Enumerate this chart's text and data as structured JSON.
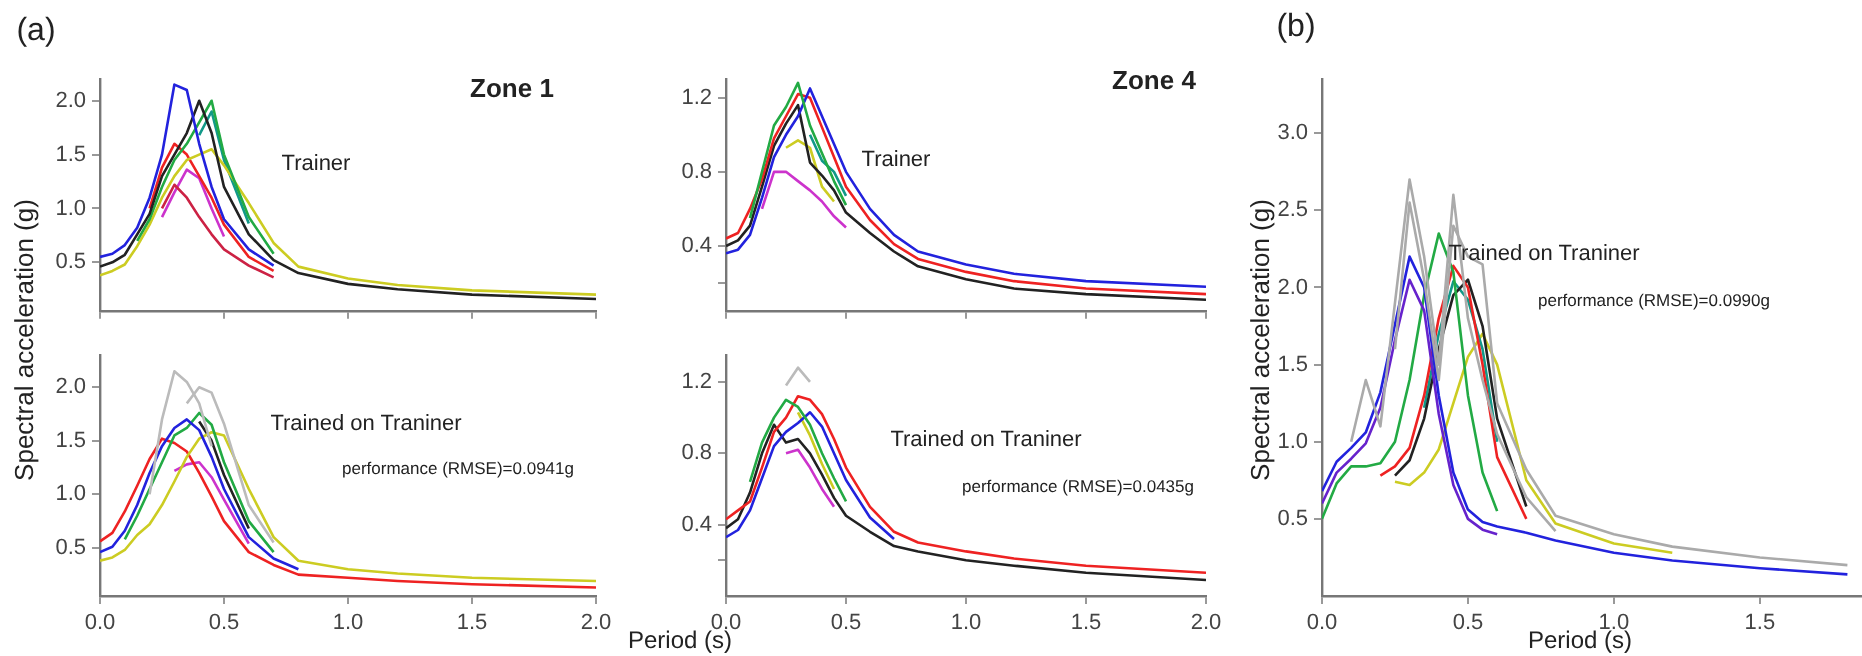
{
  "chart_data": [
    {
      "type": "line",
      "title": "Zone 1",
      "ylabel": "Spectral acceleration (g)",
      "annotations": [
        "(a)",
        "Trainer"
      ],
      "tick_labels": "y",
      "xlim": [
        0,
        2
      ],
      "ylim": [
        0.05,
        2.2
      ],
      "xticks": [
        {
          "value": 0,
          "label": null
        },
        {
          "value": 0.5,
          "label": null
        },
        {
          "value": 1,
          "label": null
        },
        {
          "value": 1.5,
          "label": null
        },
        {
          "value": 2,
          "label": null
        }
      ],
      "yticks": [
        {
          "value": 0.5,
          "label": "0.5"
        },
        {
          "value": 1,
          "label": "1.0"
        },
        {
          "value": 1.5,
          "label": "1.5"
        },
        {
          "value": 2,
          "label": "2.0"
        }
      ],
      "x": [
        0,
        0.05,
        0.1,
        0.15,
        0.2,
        0.25,
        0.3,
        0.35,
        0.4,
        0.45,
        0.5,
        0.6,
        0.7,
        0.8,
        1.0,
        1.2,
        1.5,
        2.0
      ],
      "series": [
        {
          "color": "#2222dd",
          "values": [
            0.55,
            0.58,
            0.66,
            0.82,
            1.1,
            1.5,
            2.15,
            2.1,
            1.6,
            1.2,
            0.9,
            0.62,
            0.47,
            null,
            null,
            null,
            null,
            null
          ]
        },
        {
          "color": "#222222",
          "values": [
            0.46,
            0.5,
            0.57,
            0.76,
            0.95,
            1.3,
            1.5,
            1.7,
            2.0,
            1.7,
            1.2,
            0.76,
            0.52,
            0.4,
            0.3,
            0.25,
            0.2,
            0.16
          ]
        },
        {
          "color": "#22aa44",
          "values": [
            null,
            null,
            null,
            0.7,
            0.9,
            1.2,
            1.45,
            1.6,
            1.8,
            2.0,
            1.5,
            0.92,
            0.58,
            null,
            null,
            null,
            null,
            null
          ]
        },
        {
          "color": "#cccc22",
          "values": [
            0.38,
            0.42,
            0.48,
            0.65,
            0.85,
            1.1,
            1.3,
            1.45,
            1.5,
            1.55,
            1.4,
            1.05,
            0.68,
            0.46,
            0.35,
            0.29,
            0.24,
            0.2
          ]
        },
        {
          "color": "#ee2222",
          "values": [
            null,
            null,
            null,
            null,
            1.0,
            1.38,
            1.6,
            1.5,
            1.3,
            1.1,
            0.85,
            0.55,
            0.42,
            null,
            null,
            null,
            null,
            null
          ]
        },
        {
          "color": "#cc2244",
          "values": [
            null,
            null,
            null,
            null,
            null,
            1.0,
            1.22,
            1.1,
            0.92,
            0.76,
            0.62,
            0.47,
            0.36,
            null,
            null,
            null,
            null,
            null
          ]
        },
        {
          "color": "#cc33cc",
          "values": [
            null,
            null,
            null,
            null,
            null,
            0.92,
            1.15,
            1.36,
            1.28,
            1.0,
            0.74,
            null,
            null,
            null,
            null,
            null,
            null,
            null
          ]
        },
        {
          "color": "#119988",
          "values": [
            null,
            null,
            null,
            null,
            null,
            null,
            null,
            null,
            1.68,
            1.9,
            1.45,
            0.86,
            null,
            null,
            null,
            null,
            null,
            null
          ]
        }
      ]
    },
    {
      "type": "line",
      "title": "Zone 4",
      "annotations": [
        "Trainer"
      ],
      "tick_labels": "y",
      "xlim": [
        0,
        2
      ],
      "ylim": [
        0.05,
        1.3
      ],
      "xticks": [
        {
          "value": 0,
          "label": null
        },
        {
          "value": 0.5,
          "label": null
        },
        {
          "value": 1,
          "label": null
        },
        {
          "value": 1.5,
          "label": null
        },
        {
          "value": 2,
          "label": null
        }
      ],
      "yticks": [
        {
          "value": 0.2,
          "label": null
        },
        0.4,
        0.8,
        1.2
      ],
      "x": [
        0,
        0.05,
        0.1,
        0.15,
        0.2,
        0.25,
        0.3,
        0.35,
        0.4,
        0.45,
        0.5,
        0.6,
        0.7,
        0.8,
        1.0,
        1.2,
        1.5,
        2.0
      ],
      "series": [
        {
          "color": "#22aa44",
          "values": [
            null,
            null,
            0.55,
            0.8,
            1.05,
            1.15,
            1.28,
            1.05,
            0.9,
            0.75,
            0.62,
            null,
            null,
            null,
            null,
            null,
            null,
            null
          ]
        },
        {
          "color": "#2222dd",
          "values": [
            0.36,
            0.38,
            0.46,
            0.66,
            0.88,
            1.0,
            1.1,
            1.25,
            1.1,
            0.95,
            0.8,
            0.6,
            0.46,
            0.37,
            0.3,
            0.25,
            0.21,
            0.18
          ]
        },
        {
          "color": "#ee2222",
          "values": [
            0.44,
            0.47,
            0.6,
            0.76,
            0.98,
            1.1,
            1.22,
            1.2,
            1.04,
            0.88,
            0.72,
            0.54,
            0.41,
            0.33,
            0.26,
            0.21,
            0.17,
            0.14
          ]
        },
        {
          "color": "#222222",
          "values": [
            0.4,
            0.43,
            0.51,
            0.72,
            0.94,
            1.06,
            1.16,
            0.85,
            0.78,
            0.7,
            0.58,
            0.47,
            0.37,
            0.29,
            0.22,
            0.17,
            0.14,
            0.11
          ]
        },
        {
          "color": "#cc33cc",
          "values": [
            null,
            null,
            null,
            0.6,
            0.8,
            0.8,
            0.75,
            0.7,
            0.64,
            0.56,
            0.5,
            null,
            null,
            null,
            null,
            null,
            null,
            null
          ]
        },
        {
          "color": "#119988",
          "values": [
            null,
            null,
            null,
            null,
            null,
            null,
            null,
            1.0,
            0.86,
            0.8,
            0.67,
            null,
            null,
            null,
            null,
            null,
            null,
            null
          ]
        },
        {
          "color": "#cccc22",
          "values": [
            null,
            null,
            null,
            null,
            null,
            0.93,
            0.97,
            0.93,
            0.72,
            0.64,
            null,
            null,
            null,
            null,
            null,
            null,
            null,
            null
          ]
        }
      ]
    },
    {
      "type": "line",
      "annotations": [
        "Trained on Traniner",
        "performance (RMSE)=0.0941g"
      ],
      "xlim": [
        0,
        2
      ],
      "ylim": [
        0.05,
        2.3
      ],
      "xticks": [
        {
          "value": 0,
          "label": "0.0"
        },
        {
          "value": 0.5,
          "label": "0.5"
        },
        {
          "value": 1,
          "label": "1.0"
        },
        {
          "value": 1.5,
          "label": "1.5"
        },
        {
          "value": 2,
          "label": "2.0"
        }
      ],
      "yticks": [
        {
          "value": 0.5,
          "label": "0.5"
        },
        {
          "value": 1,
          "label": "1.0"
        },
        {
          "value": 1.5,
          "label": "1.5"
        },
        {
          "value": 2,
          "label": "2.0"
        }
      ],
      "x": [
        0,
        0.05,
        0.1,
        0.15,
        0.2,
        0.25,
        0.3,
        0.35,
        0.4,
        0.45,
        0.5,
        0.6,
        0.7,
        0.8,
        1.0,
        1.2,
        1.5,
        2.0
      ],
      "series": [
        {
          "color": "#bbbbbb",
          "values": [
            null,
            null,
            null,
            null,
            1.0,
            1.7,
            2.15,
            2.05,
            1.85,
            1.45,
            null,
            null,
            null,
            null,
            null,
            null,
            null,
            null
          ]
        },
        {
          "color": "#bbbbbb",
          "values": [
            null,
            null,
            null,
            null,
            null,
            null,
            null,
            1.85,
            2.0,
            1.95,
            1.66,
            0.9,
            0.55,
            null,
            null,
            null,
            null,
            null
          ]
        },
        {
          "color": "#2222dd",
          "values": [
            0.46,
            0.51,
            0.66,
            0.9,
            1.2,
            1.45,
            1.62,
            1.7,
            1.6,
            1.35,
            1.05,
            0.6,
            0.4,
            0.3,
            null,
            null,
            null,
            null
          ]
        },
        {
          "color": "#22aa44",
          "values": [
            null,
            null,
            0.58,
            0.8,
            1.05,
            1.3,
            1.55,
            1.62,
            1.76,
            1.65,
            1.3,
            0.75,
            0.46,
            null,
            null,
            null,
            null,
            null
          ]
        },
        {
          "color": "#cccc22",
          "values": [
            0.38,
            0.41,
            0.48,
            0.62,
            0.72,
            0.9,
            1.12,
            1.35,
            1.52,
            1.58,
            1.55,
            1.05,
            0.6,
            0.38,
            0.3,
            0.26,
            0.22,
            0.19
          ]
        },
        {
          "color": "#ee2222",
          "values": [
            0.56,
            0.64,
            0.84,
            1.08,
            1.33,
            1.52,
            1.48,
            1.4,
            1.2,
            0.98,
            0.75,
            0.46,
            0.34,
            0.25,
            0.22,
            0.19,
            0.16,
            0.13
          ]
        },
        {
          "color": "#222222",
          "values": [
            null,
            null,
            null,
            null,
            null,
            null,
            null,
            null,
            1.68,
            1.5,
            1.18,
            0.68,
            null,
            null,
            null,
            null,
            null,
            null
          ]
        },
        {
          "color": "#cc33cc",
          "values": [
            null,
            null,
            null,
            null,
            null,
            null,
            1.22,
            1.28,
            1.3,
            1.16,
            0.95,
            0.54,
            null,
            null,
            null,
            null,
            null,
            null
          ]
        }
      ]
    },
    {
      "type": "line",
      "xlabel": "Period (s)",
      "annotations": [
        "Trained on Traniner",
        "performance (RMSE)=0.0435g"
      ],
      "xlim": [
        0,
        2
      ],
      "ylim": [
        0,
        1.35
      ],
      "xticks": [
        {
          "value": 0,
          "label": "0.0"
        },
        {
          "value": 0.5,
          "label": "0.5"
        },
        {
          "value": 1,
          "label": "1.0"
        },
        {
          "value": 1.5,
          "label": "1.5"
        },
        {
          "value": 2,
          "label": "2.0"
        }
      ],
      "yticks": [
        {
          "value": 0.2,
          "label": null
        },
        0.4,
        0.8,
        1.2
      ],
      "x": [
        0,
        0.05,
        0.1,
        0.15,
        0.2,
        0.25,
        0.3,
        0.35,
        0.4,
        0.45,
        0.5,
        0.6,
        0.7,
        0.8,
        1.0,
        1.2,
        1.5,
        2.0
      ],
      "series": [
        {
          "color": "#bbbbbb",
          "values": [
            null,
            null,
            null,
            null,
            null,
            1.18,
            1.28,
            1.2,
            null,
            null,
            null,
            null,
            null,
            null,
            null,
            null,
            null,
            null
          ]
        },
        {
          "color": "#22aa44",
          "values": [
            null,
            null,
            0.64,
            0.86,
            1.0,
            1.1,
            1.06,
            0.96,
            0.8,
            0.66,
            0.53,
            null,
            null,
            null,
            null,
            null,
            null,
            null
          ]
        },
        {
          "color": "#2222dd",
          "values": [
            0.33,
            0.37,
            0.48,
            0.66,
            0.84,
            0.92,
            0.97,
            1.03,
            0.95,
            0.8,
            0.65,
            0.44,
            0.32,
            null,
            null,
            null,
            null,
            null
          ]
        },
        {
          "color": "#ee2222",
          "values": [
            0.43,
            0.48,
            0.53,
            0.72,
            0.92,
            1.0,
            1.12,
            1.1,
            1.02,
            0.88,
            0.72,
            0.5,
            0.36,
            0.3,
            0.25,
            0.21,
            0.17,
            0.13
          ]
        },
        {
          "color": "#222222",
          "values": [
            0.38,
            0.43,
            0.58,
            0.8,
            0.96,
            0.86,
            0.88,
            0.8,
            0.68,
            0.55,
            0.45,
            0.36,
            0.28,
            0.25,
            0.2,
            0.17,
            0.13,
            0.09
          ]
        },
        {
          "color": "#cc33cc",
          "values": [
            null,
            null,
            null,
            null,
            null,
            0.8,
            0.82,
            0.72,
            0.6,
            0.5,
            null,
            null,
            null,
            null,
            null,
            null,
            null,
            null
          ]
        },
        {
          "color": "#cccc22",
          "values": [
            null,
            null,
            null,
            null,
            null,
            null,
            1.03,
            0.9,
            0.74,
            0.6,
            null,
            null,
            null,
            null,
            null,
            null,
            null,
            null
          ]
        }
      ]
    },
    {
      "type": "line",
      "xlabel": "Period (s)",
      "ylabel": "Spectral acceleration (g)",
      "annotations": [
        "(b)",
        "Trained on Traniner",
        "performance (RMSE)=0.0990g"
      ],
      "xlim": [
        0,
        1.85
      ],
      "ylim": [
        0,
        3.35
      ],
      "xticks": [
        {
          "value": 0,
          "label": "0.0"
        },
        {
          "value": 0.5,
          "label": "0.5"
        },
        {
          "value": 1,
          "label": "1.0"
        },
        {
          "value": 1.5,
          "label": "1.5"
        }
      ],
      "yticks": [
        {
          "value": 0.5,
          "label": "0.5"
        },
        {
          "value": 1,
          "label": "1.0"
        },
        {
          "value": 1.5,
          "label": "1.5"
        },
        {
          "value": 2,
          "label": "2.0"
        },
        {
          "value": 2.5,
          "label": "2.5"
        },
        {
          "value": 3,
          "label": "3.0"
        }
      ],
      "x": [
        0,
        0.05,
        0.1,
        0.15,
        0.2,
        0.25,
        0.3,
        0.35,
        0.4,
        0.45,
        0.5,
        0.55,
        0.6,
        0.7,
        0.8,
        1.0,
        1.2,
        1.5,
        1.8
      ],
      "series": [
        {
          "color": "#aaaaaa",
          "values": [
            null,
            null,
            1.0,
            1.4,
            1.1,
            1.9,
            2.7,
            2.2,
            1.5,
            2.6,
            1.8,
            1.4,
            1.05,
            0.64,
            0.42,
            null,
            null,
            null,
            null
          ]
        },
        {
          "color": "#aaaaaa",
          "values": [
            null,
            null,
            null,
            null,
            null,
            1.6,
            2.55,
            2.05,
            1.4,
            2.4,
            2.2,
            2.15,
            1.25,
            0.82,
            0.52,
            0.4,
            0.32,
            0.25,
            0.2
          ]
        },
        {
          "color": "#2222dd",
          "values": [
            0.68,
            0.87,
            0.96,
            1.06,
            1.32,
            1.76,
            2.2,
            2.0,
            1.3,
            0.8,
            0.56,
            0.48,
            0.45,
            0.41,
            0.36,
            0.28,
            0.23,
            0.18,
            0.14
          ]
        },
        {
          "color": "#6622cc",
          "values": [
            0.6,
            0.8,
            0.89,
            0.99,
            1.22,
            1.66,
            2.05,
            1.85,
            1.18,
            0.72,
            0.5,
            0.43,
            0.4,
            null,
            null,
            null,
            null,
            null,
            null
          ]
        },
        {
          "color": "#22aa44",
          "values": [
            0.5,
            0.73,
            0.84,
            0.84,
            0.86,
            1.0,
            1.4,
            1.95,
            2.35,
            2.1,
            1.3,
            0.8,
            0.55,
            null,
            null,
            null,
            null,
            null,
            null
          ]
        },
        {
          "color": "#ee2222",
          "values": [
            null,
            null,
            null,
            null,
            0.78,
            0.84,
            0.96,
            1.3,
            1.8,
            2.14,
            2.0,
            1.5,
            0.9,
            0.5,
            null,
            null,
            null,
            null,
            null
          ]
        },
        {
          "color": "#222222",
          "values": [
            null,
            null,
            null,
            null,
            null,
            0.78,
            0.88,
            1.15,
            1.6,
            1.95,
            2.05,
            1.75,
            1.15,
            0.58,
            null,
            null,
            null,
            null,
            null
          ]
        },
        {
          "color": "#119988",
          "values": [
            null,
            null,
            null,
            null,
            null,
            null,
            null,
            1.22,
            1.7,
            2.04,
            1.92,
            1.6,
            1.0,
            null,
            null,
            null,
            null,
            null,
            null
          ]
        },
        {
          "color": "#cccc22",
          "values": [
            null,
            null,
            null,
            null,
            null,
            0.74,
            0.72,
            0.8,
            0.95,
            1.25,
            1.55,
            1.7,
            1.5,
            0.75,
            0.47,
            0.34,
            0.28,
            null,
            null
          ]
        }
      ]
    }
  ]
}
